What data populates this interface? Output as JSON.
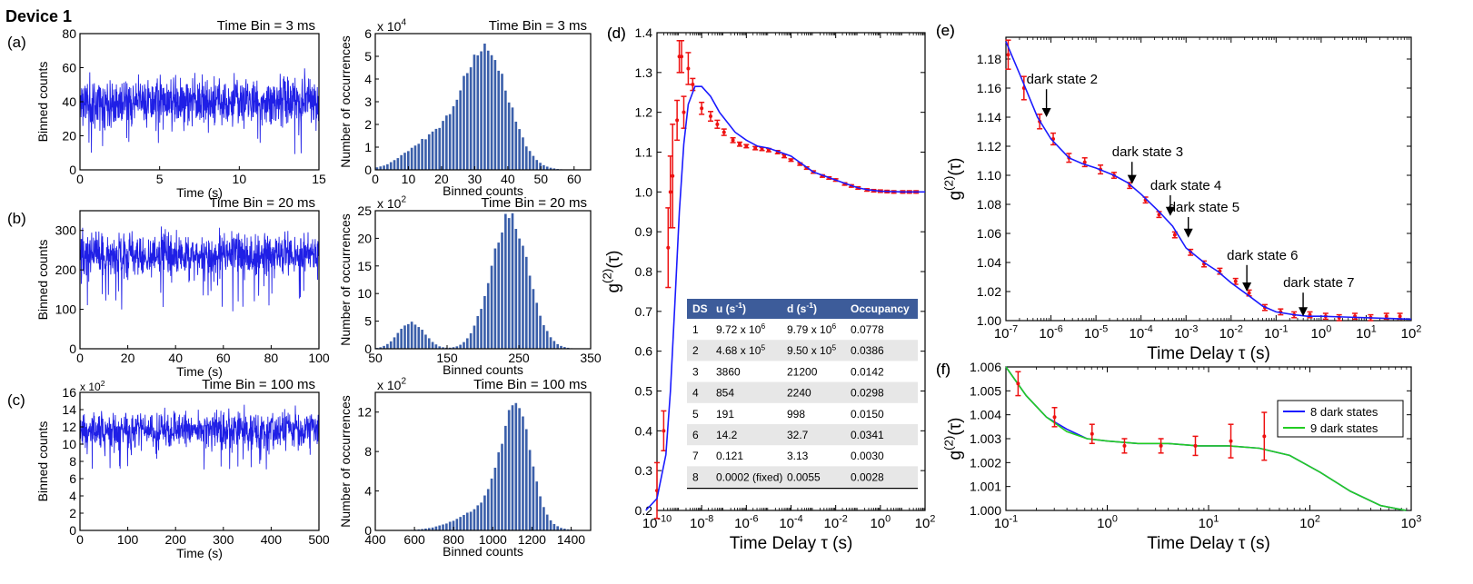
{
  "figure_title": "Device 1",
  "colors": {
    "trace": "#1f1fe6",
    "bars": "#3b5faa",
    "fit": "#1a1aff",
    "data": "#ee1111",
    "green": "#22cc22",
    "tableHeader": "#3d5c9a",
    "tableAlt": "#e7e7e7"
  },
  "chart_data": [
    {
      "id": "a1",
      "panel_label": "(a)",
      "type": "line",
      "title": "Time Bin = 3 ms",
      "xlabel": "Time (s)",
      "ylabel": "Binned counts",
      "xlim": [
        0,
        15
      ],
      "ylim": [
        0,
        80
      ],
      "xticks": [
        "0",
        "5",
        "10",
        "15"
      ],
      "yticks": [
        "0",
        "20",
        "40",
        "60",
        "80"
      ],
      "trace": {
        "mean": 40,
        "sd": 7,
        "dip_low": 8,
        "dip_prob": 0.012
      }
    },
    {
      "id": "a2",
      "type": "bar",
      "title": "Time Bin = 3 ms",
      "xlabel": "Binned counts",
      "ylabel": "Number of occurrences",
      "multiplier": "x 10^4",
      "xlim": [
        0,
        65
      ],
      "ylim": [
        0,
        6
      ],
      "xticks": [
        "0",
        "10",
        "20",
        "30",
        "40",
        "50",
        "60"
      ],
      "yticks": [
        "0",
        "1",
        "2",
        "3",
        "4",
        "5",
        "6"
      ],
      "components": [
        {
          "amp": 1.2,
          "mu": 16,
          "sd": 7
        },
        {
          "amp": 5.4,
          "mu": 33,
          "sd": 7
        }
      ]
    },
    {
      "id": "b1",
      "panel_label": "(b)",
      "type": "line",
      "title": "Time Bin = 20 ms",
      "xlabel": "Time (s)",
      "ylabel": "Binned counts",
      "xlim": [
        0,
        100
      ],
      "ylim": [
        0,
        350
      ],
      "xticks": [
        "0",
        "20",
        "40",
        "60",
        "80",
        "100"
      ],
      "yticks": [
        "0",
        "100",
        "200",
        "300"
      ],
      "trace": {
        "mean": 238,
        "sd": 27,
        "dip_low": 95,
        "dip_prob": 0.025
      }
    },
    {
      "id": "b2",
      "type": "bar",
      "title": "Time Bin = 20 ms",
      "xlabel": "Binned counts",
      "ylabel": "Number of occurrences",
      "multiplier": "x 10^2",
      "xlim": [
        50,
        350
      ],
      "ylim": [
        0,
        25
      ],
      "xticks": [
        "50",
        "150",
        "250",
        "350"
      ],
      "yticks": [
        "0",
        "5",
        "10",
        "15",
        "20",
        "25"
      ],
      "components": [
        {
          "amp": 4.8,
          "mu": 100,
          "sd": 18
        },
        {
          "amp": 24,
          "mu": 237,
          "sd": 26
        }
      ]
    },
    {
      "id": "c1",
      "panel_label": "(c)",
      "type": "line",
      "title": "Time Bin = 100 ms",
      "xlabel": "Time (s)",
      "ylabel": "Binned counts",
      "multiplier": "x 10^2",
      "xlim": [
        0,
        500
      ],
      "ylim": [
        0,
        16
      ],
      "xticks": [
        "0",
        "100",
        "200",
        "300",
        "400",
        "500"
      ],
      "yticks": [
        "0",
        "2",
        "4",
        "6",
        "8",
        "10",
        "12",
        "14",
        "16"
      ],
      "trace": {
        "mean": 11.6,
        "sd": 1.1,
        "dip_low": 7,
        "dip_prob": 0.02
      }
    },
    {
      "id": "c2",
      "type": "bar",
      "title": "Time Bin = 100 ms",
      "xlabel": "Binned counts",
      "ylabel": "Number of occurrences",
      "multiplier": "x 10^2",
      "xlim": [
        400,
        1500
      ],
      "ylim": [
        0,
        14
      ],
      "xticks": [
        "400",
        "600",
        "800",
        "1000",
        "1200",
        "1400"
      ],
      "yticks": [
        "0",
        "4",
        "8",
        "12"
      ],
      "components": [
        {
          "amp": 2.5,
          "mu": 1000,
          "sd": 150
        },
        {
          "amp": 10.8,
          "mu": 1120,
          "sd": 75
        }
      ]
    },
    {
      "id": "d",
      "panel_label": "(d)",
      "type": "scatter",
      "xscale": "log",
      "xlabel": "Time Delay τ (s)",
      "ylabel": "g(2)(τ)",
      "xlim_exp": [
        -10,
        2
      ],
      "ylim": [
        0.2,
        1.4
      ],
      "xticks": [
        "10-10",
        "10-8",
        "10-6",
        "10-4",
        "10-2",
        "100",
        "102"
      ],
      "yticks": [
        "0.2",
        "0.3",
        "0.4",
        "0.5",
        "0.6",
        "0.7",
        "0.8",
        "0.9",
        "1.0",
        "1.1",
        "1.2",
        "1.3",
        "1.4"
      ],
      "fit_curve": [
        [
          -10.5,
          0.2
        ],
        [
          -10,
          0.23
        ],
        [
          -9.6,
          0.34
        ],
        [
          -9.4,
          0.5
        ],
        [
          -9.2,
          0.72
        ],
        [
          -9,
          0.95
        ],
        [
          -8.8,
          1.12
        ],
        [
          -8.6,
          1.22
        ],
        [
          -8.3,
          1.265
        ],
        [
          -8,
          1.265
        ],
        [
          -7.6,
          1.24
        ],
        [
          -7.2,
          1.2
        ],
        [
          -6.5,
          1.15
        ],
        [
          -6,
          1.13
        ],
        [
          -5.5,
          1.115
        ],
        [
          -5,
          1.11
        ],
        [
          -4.5,
          1.1
        ],
        [
          -4,
          1.09
        ],
        [
          -3.5,
          1.07
        ],
        [
          -3,
          1.05
        ],
        [
          -2.5,
          1.04
        ],
        [
          -2,
          1.03
        ],
        [
          -1.5,
          1.02
        ],
        [
          -1,
          1.01
        ],
        [
          -0.5,
          1.005
        ],
        [
          0,
          1.002
        ],
        [
          1,
          1
        ],
        [
          2,
          1
        ]
      ],
      "points": [
        [
          -10,
          0.25,
          0.07
        ],
        [
          -9.7,
          0.4,
          0.05
        ],
        [
          -9.5,
          0.86,
          0.1
        ],
        [
          -9.4,
          1.0,
          0.09
        ],
        [
          -9.3,
          1.04,
          0.13
        ],
        [
          -9.1,
          1.18,
          0.05
        ],
        [
          -9,
          1.34,
          0.04
        ],
        [
          -8.9,
          1.34,
          0.04
        ],
        [
          -8.8,
          1.2,
          0.04
        ],
        [
          -8.6,
          1.31,
          0.04
        ],
        [
          -8.4,
          1.27,
          0.015
        ],
        [
          -8,
          1.21,
          0.015
        ],
        [
          -7.6,
          1.19,
          0.012
        ],
        [
          -7.3,
          1.17,
          0.01
        ],
        [
          -7,
          1.15,
          0.008
        ],
        [
          -6.6,
          1.13,
          0.006
        ],
        [
          -6.3,
          1.12,
          0.005
        ],
        [
          -6,
          1.115,
          0.004
        ],
        [
          -5.6,
          1.11,
          0.004
        ],
        [
          -5.3,
          1.108,
          0.004
        ],
        [
          -5,
          1.105,
          0.004
        ],
        [
          -4.6,
          1.1,
          0.004
        ],
        [
          -4.3,
          1.09,
          0.004
        ],
        [
          -4,
          1.08,
          0.003
        ],
        [
          -3.6,
          1.07,
          0.003
        ],
        [
          -3.3,
          1.06,
          0.003
        ],
        [
          -3,
          1.05,
          0.003
        ],
        [
          -2.6,
          1.04,
          0.003
        ],
        [
          -2.3,
          1.035,
          0.003
        ],
        [
          -2,
          1.03,
          0.003
        ],
        [
          -1.6,
          1.02,
          0.003
        ],
        [
          -1.3,
          1.015,
          0.003
        ],
        [
          -1,
          1.01,
          0.003
        ],
        [
          -0.6,
          1.005,
          0.003
        ],
        [
          -0.3,
          1.003,
          0.003
        ],
        [
          0,
          1.002,
          0.003
        ],
        [
          0.3,
          1.001,
          0.003
        ],
        [
          0.6,
          1.0,
          0.003
        ],
        [
          1,
          1.0,
          0.003
        ],
        [
          1.3,
          1.0,
          0.003
        ],
        [
          1.6,
          1.0,
          0.003
        ]
      ],
      "table": {
        "headers": [
          "DS",
          "u (s-1)",
          "d (s-1)",
          "Occupancy"
        ],
        "rows": [
          [
            "1",
            "9.72 x 10^6",
            "9.79 x 10^6",
            "0.0778"
          ],
          [
            "2",
            "4.68 x 10^5",
            "9.50 x 10^5",
            "0.0386"
          ],
          [
            "3",
            "3860",
            "21200",
            "0.0142"
          ],
          [
            "4",
            "854",
            "2240",
            "0.0298"
          ],
          [
            "5",
            "191",
            "998",
            "0.0150"
          ],
          [
            "6",
            "14.2",
            "32.7",
            "0.0341"
          ],
          [
            "7",
            "0.121",
            "3.13",
            "0.0030"
          ],
          [
            "8",
            "0.0002 (fixed)",
            "0.0055",
            "0.0028"
          ]
        ]
      }
    },
    {
      "id": "e",
      "panel_label": "(e)",
      "type": "scatter",
      "xscale": "log",
      "xlabel": "Time Delay τ (s)",
      "ylabel": "g(2)(τ)",
      "xlim_exp": [
        -7,
        2
      ],
      "ylim": [
        1.0,
        1.195
      ],
      "xticks": [
        "10-7",
        "10-6",
        "10-5",
        "10-4",
        "10-3",
        "10-2",
        "10-1",
        "100",
        "101",
        "102"
      ],
      "yticks": [
        "1.00",
        "1.02",
        "1.04",
        "1.06",
        "1.08",
        "1.10",
        "1.12",
        "1.14",
        "1.16",
        "1.18"
      ],
      "fit_curve": [
        [
          -7,
          1.192
        ],
        [
          -6.7,
          1.17
        ],
        [
          -6.3,
          1.14
        ],
        [
          -6,
          1.125
        ],
        [
          -5.6,
          1.112
        ],
        [
          -5.3,
          1.108
        ],
        [
          -5,
          1.105
        ],
        [
          -4.6,
          1.1
        ],
        [
          -4.3,
          1.095
        ],
        [
          -4,
          1.087
        ],
        [
          -3.6,
          1.075
        ],
        [
          -3.3,
          1.065
        ],
        [
          -3,
          1.05
        ],
        [
          -2.6,
          1.04
        ],
        [
          -2.3,
          1.034
        ],
        [
          -2,
          1.026
        ],
        [
          -1.6,
          1.017
        ],
        [
          -1.3,
          1.01
        ],
        [
          -1,
          1.006
        ],
        [
          -0.6,
          1.004
        ],
        [
          -0.3,
          1.003
        ],
        [
          0,
          1.003
        ],
        [
          0.5,
          1.0025
        ],
        [
          1,
          1.002
        ],
        [
          1.5,
          1.0015
        ],
        [
          2,
          1.001
        ]
      ],
      "points": [
        [
          -6.95,
          1.183,
          0.01
        ],
        [
          -6.6,
          1.16,
          0.008
        ],
        [
          -6.25,
          1.137,
          0.005
        ],
        [
          -5.95,
          1.125,
          0.004
        ],
        [
          -5.6,
          1.112,
          0.003
        ],
        [
          -5.25,
          1.109,
          0.003
        ],
        [
          -4.9,
          1.104,
          0.003
        ],
        [
          -4.6,
          1.1,
          0.002
        ],
        [
          -4.25,
          1.093,
          0.002
        ],
        [
          -3.9,
          1.083,
          0.002
        ],
        [
          -3.6,
          1.073,
          0.002
        ],
        [
          -3.25,
          1.059,
          0.002
        ],
        [
          -2.9,
          1.047,
          0.002
        ],
        [
          -2.6,
          1.039,
          0.002
        ],
        [
          -2.25,
          1.034,
          0.002
        ],
        [
          -1.9,
          1.027,
          0.002
        ],
        [
          -1.6,
          1.019,
          0.002
        ],
        [
          -1.25,
          1.009,
          0.002
        ],
        [
          -0.9,
          1.006,
          0.002
        ],
        [
          -0.6,
          1.004,
          0.002
        ],
        [
          -0.25,
          1.004,
          0.002
        ],
        [
          0.1,
          1.003,
          0.002
        ],
        [
          0.4,
          1.002,
          0.002
        ],
        [
          0.75,
          1.003,
          0.002
        ],
        [
          1.1,
          1.002,
          0.002
        ],
        [
          1.45,
          1.003,
          0.002
        ],
        [
          1.75,
          1.003,
          0.002
        ]
      ],
      "annotations": [
        {
          "label": "dark state 2",
          "x": -6.1,
          "y_text": 1.163,
          "y_tip": 1.14
        },
        {
          "label": "dark state 3",
          "x": -4.2,
          "y_text": 1.113,
          "y_tip": 1.094
        },
        {
          "label": "dark state 4",
          "x": -3.35,
          "y_text": 1.09,
          "y_tip": 1.072
        },
        {
          "label": "dark state 5",
          "x": -2.95,
          "y_text": 1.075,
          "y_tip": 1.057
        },
        {
          "label": "dark state 6",
          "x": -1.65,
          "y_text": 1.042,
          "y_tip": 1.02
        },
        {
          "label": "dark state 7",
          "x": -0.4,
          "y_text": 1.023,
          "y_tip": 1.003
        }
      ]
    },
    {
      "id": "f",
      "panel_label": "(f)",
      "type": "line",
      "xscale": "log",
      "xlabel": "Time Delay τ (s)",
      "ylabel": "g(2)(τ)",
      "xlim_exp": [
        -1,
        3
      ],
      "ylim": [
        1.0,
        1.006
      ],
      "xticks": [
        "10-1",
        "100",
        "101",
        "102",
        "103"
      ],
      "yticks": [
        "1.000",
        "1.001",
        "1.002",
        "1.003",
        "1.004",
        "1.005",
        "1.006"
      ],
      "legend": "top-right",
      "series": [
        {
          "name": "8 dark states",
          "color": "blue",
          "values": [
            [
              -1,
              1.006
            ],
            [
              -0.8,
              1.0048
            ],
            [
              -0.6,
              1.0039
            ],
            [
              -0.4,
              1.0034
            ],
            [
              -0.2,
              1.003
            ],
            [
              0,
              1.0029
            ],
            [
              0.3,
              1.0028
            ],
            [
              0.6,
              1.0028
            ],
            [
              0.9,
              1.0027
            ],
            [
              1.2,
              1.0027
            ],
            [
              1.5,
              1.0026
            ],
            [
              1.8,
              1.0023
            ],
            [
              2.1,
              1.0016
            ],
            [
              2.4,
              1.0008
            ],
            [
              2.7,
              1.0002
            ],
            [
              2.95,
              1.0
            ]
          ]
        },
        {
          "name": "9 dark states",
          "color": "green",
          "values": [
            [
              -1,
              1.006
            ],
            [
              -0.8,
              1.0048
            ],
            [
              -0.6,
              1.0039
            ],
            [
              -0.4,
              1.0033
            ],
            [
              -0.2,
              1.003
            ],
            [
              0,
              1.0029
            ],
            [
              0.3,
              1.0028
            ],
            [
              0.6,
              1.0028
            ],
            [
              0.9,
              1.0027
            ],
            [
              1.2,
              1.0027
            ],
            [
              1.5,
              1.0026
            ],
            [
              1.8,
              1.0023
            ],
            [
              2.1,
              1.0016
            ],
            [
              2.4,
              1.0008
            ],
            [
              2.7,
              1.0002
            ],
            [
              2.95,
              1.0
            ]
          ]
        }
      ],
      "points": [
        [
          -0.88,
          1.0053,
          0.0005
        ],
        [
          -0.52,
          1.0039,
          0.0004
        ],
        [
          -0.15,
          1.0032,
          0.0004
        ],
        [
          0.17,
          1.0027,
          0.0003
        ],
        [
          0.53,
          1.0027,
          0.0003
        ],
        [
          0.87,
          1.0027,
          0.0004
        ],
        [
          1.22,
          1.0029,
          0.0007
        ],
        [
          1.55,
          1.0031,
          0.001
        ]
      ]
    }
  ]
}
